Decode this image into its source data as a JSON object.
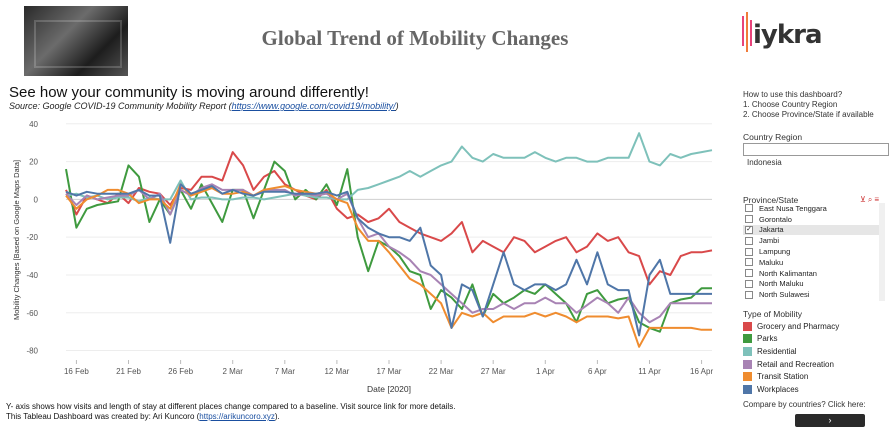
{
  "header": {
    "title": "Global Trend of Mobility Changes",
    "logo_text": "iykra"
  },
  "subtitle": "See how your community is moving around differently!",
  "source": {
    "prefix": "Source: Google COVID-19 Community Mobility Report (",
    "link": "https://www.google.com/covid19/mobility/",
    "suffix": ")"
  },
  "footer": {
    "line1": "Y- axis shows how visits and length of stay at different places change compared to a baseline. Visit source link for more details.",
    "line2_prefix": "This Tableau Dashboard was created by: Ari Kuncoro (",
    "line2_link": "https://arikuncoro.xyz",
    "line2_suffix": ")."
  },
  "sidebar": {
    "howto_title": "How to use this dashboard?",
    "howto_step1": "1. Choose Country Region",
    "howto_step2": "2. Choose Province/State if available",
    "country_label": "Country Region",
    "country_value": "Indonesia",
    "province_label": "Province/State",
    "provinces": [
      {
        "name": "East Nusa Tenggara",
        "checked": false
      },
      {
        "name": "Gorontalo",
        "checked": false
      },
      {
        "name": "Jakarta",
        "checked": true
      },
      {
        "name": "Jambi",
        "checked": false
      },
      {
        "name": "Lampung",
        "checked": false
      },
      {
        "name": "Maluku",
        "checked": false
      },
      {
        "name": "North Kalimantan",
        "checked": false
      },
      {
        "name": "North Maluku",
        "checked": false
      },
      {
        "name": "North Sulawesi",
        "checked": false
      }
    ],
    "type_label": "Type of Mobility",
    "compare_text": "Compare by countries? Click here:",
    "compare_button": "›"
  },
  "chart_data": {
    "type": "line",
    "title": "",
    "xlabel": "Date [2020]",
    "ylabel": "Mobility Changes [Based on Google Maps Data]",
    "ylim": [
      -85,
      42
    ],
    "yticks": [
      40,
      20,
      0,
      -20,
      -40,
      -60,
      -80
    ],
    "x_start": "15 Feb",
    "x_end": "17 Apr",
    "x_tick_labels": [
      "16 Feb",
      "21 Feb",
      "26 Feb",
      "2 Mar",
      "7 Mar",
      "12 Mar",
      "17 Mar",
      "22 Mar",
      "27 Mar",
      "1 Apr",
      "6 Apr",
      "11 Apr",
      "16 Apr"
    ],
    "x_tick_index": [
      1,
      6,
      11,
      16,
      21,
      26,
      31,
      36,
      41,
      46,
      51,
      56,
      61
    ],
    "series": [
      {
        "name": "Grocery and Pharmacy",
        "color": "#d9494a",
        "values": [
          5,
          -8,
          2,
          0,
          -2,
          3,
          -2,
          6,
          4,
          3,
          -3,
          6,
          5,
          12,
          12,
          10,
          25,
          18,
          5,
          12,
          15,
          8,
          5,
          2,
          0,
          5,
          -5,
          -10,
          -8,
          -12,
          -10,
          -5,
          -12,
          -15,
          -18,
          -20,
          -22,
          -18,
          -12,
          -28,
          -22,
          -25,
          -28,
          -20,
          -22,
          -28,
          -25,
          -22,
          -20,
          -28,
          -25,
          -18,
          -22,
          -20,
          -28,
          -30,
          -45,
          -38,
          -40,
          -30,
          -28,
          -28,
          -27
        ]
      },
      {
        "name": "Parks",
        "color": "#3f9a3f",
        "values": [
          16,
          -15,
          -5,
          -3,
          -2,
          -1,
          18,
          12,
          -12,
          0,
          -8,
          5,
          -5,
          8,
          -2,
          -12,
          5,
          5,
          -10,
          5,
          20,
          15,
          0,
          5,
          0,
          8,
          -3,
          16,
          -20,
          -38,
          -22,
          -25,
          -30,
          -38,
          -40,
          -58,
          -48,
          -52,
          -58,
          -45,
          -62,
          -50,
          -55,
          -52,
          -48,
          -50,
          -45,
          -50,
          -55,
          -65,
          -50,
          -48,
          -55,
          -53,
          -52,
          -65,
          -68,
          -70,
          -55,
          -53,
          -52,
          -47,
          -47
        ]
      },
      {
        "name": "Residential",
        "color": "#7ec1ba",
        "values": [
          2,
          3,
          1,
          2,
          0,
          1,
          1,
          -1,
          1,
          0,
          0,
          10,
          0,
          1,
          1,
          0,
          0,
          1,
          1,
          0,
          1,
          2,
          3,
          2,
          1,
          1,
          0,
          0,
          5,
          6,
          8,
          10,
          12,
          15,
          12,
          15,
          18,
          20,
          28,
          22,
          20,
          24,
          22,
          22,
          22,
          25,
          22,
          20,
          22,
          22,
          20,
          20,
          22,
          22,
          22,
          35,
          20,
          18,
          24,
          22,
          24,
          25,
          26
        ]
      },
      {
        "name": "Retail and Recreation",
        "color": "#a883b4",
        "values": [
          3,
          -3,
          2,
          0,
          1,
          2,
          2,
          5,
          0,
          3,
          -8,
          5,
          2,
          6,
          8,
          5,
          5,
          5,
          2,
          5,
          5,
          5,
          2,
          3,
          2,
          3,
          0,
          3,
          -10,
          -20,
          -18,
          -25,
          -28,
          -32,
          -38,
          -40,
          -45,
          -50,
          -55,
          -60,
          -58,
          -58,
          -55,
          -58,
          -55,
          -55,
          -52,
          -55,
          -55,
          -60,
          -56,
          -52,
          -55,
          -60,
          -52,
          -60,
          -65,
          -62,
          -55,
          -55,
          -55,
          -55,
          -55
        ]
      },
      {
        "name": "Transit Station",
        "color": "#ef8c2f",
        "values": [
          2,
          -5,
          0,
          2,
          5,
          5,
          3,
          -2,
          0,
          0,
          -5,
          8,
          2,
          4,
          6,
          3,
          3,
          4,
          2,
          5,
          6,
          7,
          5,
          4,
          3,
          4,
          0,
          -2,
          -15,
          -22,
          -22,
          -28,
          -35,
          -42,
          -45,
          -50,
          -55,
          -68,
          -60,
          -62,
          -60,
          -65,
          -62,
          -62,
          -62,
          -60,
          -62,
          -60,
          -62,
          -65,
          -62,
          -62,
          -62,
          -63,
          -62,
          -78,
          -68,
          -68,
          -68,
          -68,
          -68,
          -69,
          -69
        ]
      },
      {
        "name": "Workplaces",
        "color": "#4f76a8",
        "values": [
          4,
          2,
          4,
          3,
          3,
          3,
          3,
          5,
          2,
          2,
          -23,
          8,
          3,
          5,
          7,
          3,
          5,
          3,
          2,
          4,
          4,
          4,
          3,
          3,
          3,
          4,
          2,
          4,
          -10,
          -15,
          -18,
          -20,
          -20,
          -22,
          -15,
          -35,
          -40,
          -68,
          -45,
          -48,
          -62,
          -45,
          -28,
          -45,
          -48,
          -45,
          -45,
          -48,
          -45,
          -32,
          -45,
          -28,
          -45,
          -48,
          -48,
          -72,
          -40,
          -32,
          -50,
          -50,
          -50,
          -50,
          -50
        ]
      }
    ]
  }
}
